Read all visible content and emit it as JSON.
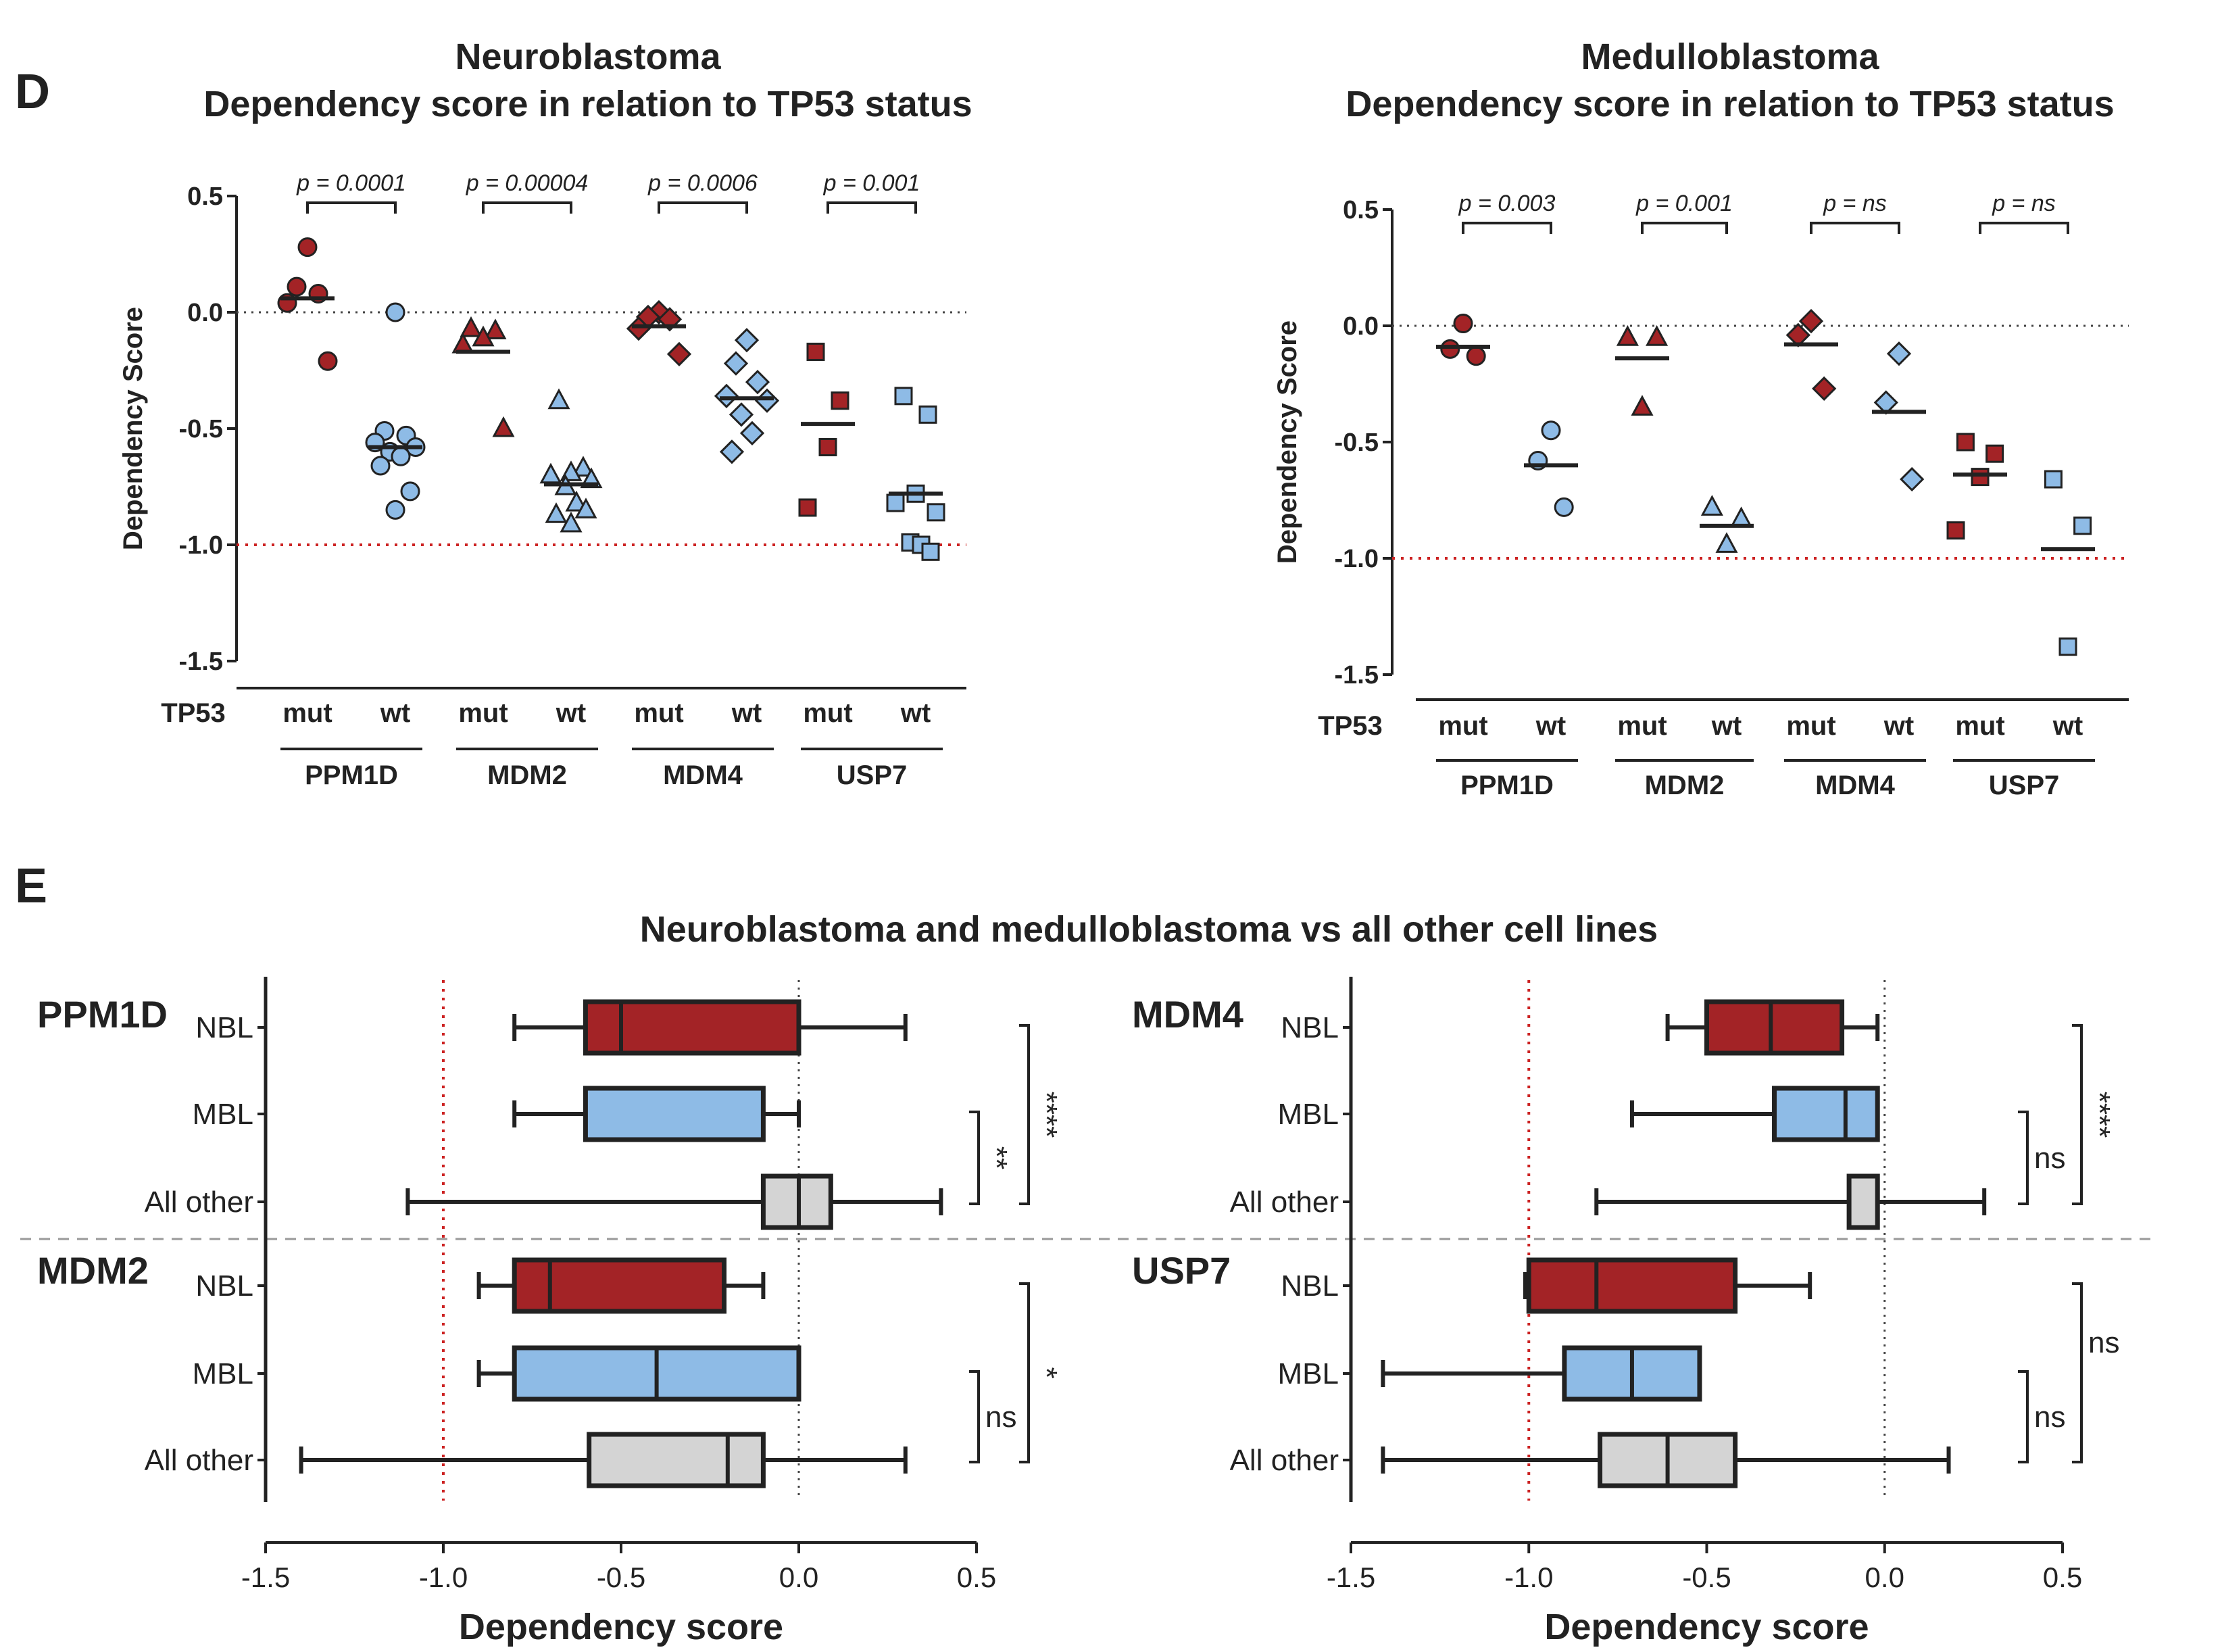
{
  "panels": {
    "D": "D",
    "E": "E"
  },
  "colors": {
    "mut": "#a32326",
    "wt": "#8ebbe6",
    "other": "#d4d4d4",
    "outline": "#222222",
    "red_line": "#cc2222",
    "grey_line": "#999999"
  },
  "chart_data": [
    {
      "type": "scatter",
      "id": "nbl",
      "title": [
        "Neuroblastoma",
        "Dependency score in relation to TP53 status"
      ],
      "ylabel": "Dependency Score",
      "ylim": [
        -1.5,
        0.5
      ],
      "yticks": [
        "0.5",
        "0.0",
        "-0.5",
        "-1.0",
        "-1.5"
      ],
      "reference_lines": [
        0.0,
        -1.0
      ],
      "row_label": "TP53",
      "groups": [
        {
          "gene": "PPM1D",
          "marker": "circle",
          "p": "p = 0.0001",
          "mut": {
            "label": "mut",
            "median": 0.06,
            "values": [
              0.28,
              0.11,
              0.08,
              0.04,
              -0.21
            ]
          },
          "wt": {
            "label": "wt",
            "median": -0.58,
            "values": [
              0.0,
              -0.51,
              -0.53,
              -0.56,
              -0.58,
              -0.6,
              -0.62,
              -0.66,
              -0.77,
              -0.85
            ]
          }
        },
        {
          "gene": "MDM2",
          "marker": "triangle",
          "p": "p = 0.00004",
          "mut": {
            "label": "mut",
            "median": -0.17,
            "values": [
              -0.07,
              -0.08,
              -0.11,
              -0.14,
              -0.5
            ]
          },
          "wt": {
            "label": "wt",
            "median": -0.74,
            "values": [
              -0.38,
              -0.67,
              -0.69,
              -0.7,
              -0.72,
              -0.75,
              -0.82,
              -0.85,
              -0.87,
              -0.91
            ]
          }
        },
        {
          "gene": "MDM4",
          "marker": "diamond",
          "p": "p = 0.0006",
          "mut": {
            "label": "mut",
            "median": -0.06,
            "values": [
              -0.0,
              -0.02,
              -0.03,
              -0.07,
              -0.18
            ]
          },
          "wt": {
            "label": "wt",
            "median": -0.37,
            "values": [
              -0.12,
              -0.22,
              -0.3,
              -0.36,
              -0.38,
              -0.44,
              -0.52,
              -0.6
            ]
          }
        },
        {
          "gene": "USP7",
          "marker": "square",
          "p": "p = 0.001",
          "mut": {
            "label": "mut",
            "median": -0.48,
            "values": [
              -0.17,
              -0.38,
              -0.58,
              -0.84
            ]
          },
          "wt": {
            "label": "wt",
            "median": -0.78,
            "values": [
              -0.36,
              -0.44,
              -0.78,
              -0.82,
              -0.86,
              -0.99,
              -1.0,
              -1.03
            ]
          }
        }
      ]
    },
    {
      "type": "scatter",
      "id": "mbl",
      "title": [
        "Medulloblastoma",
        "Dependency score in relation to TP53 status"
      ],
      "ylabel": "Dependency Score",
      "ylim": [
        -1.5,
        0.5
      ],
      "yticks": [
        "0.5",
        "0.0",
        "-0.5",
        "-1.0",
        "-1.5"
      ],
      "reference_lines": [
        0.0,
        -1.0
      ],
      "row_label": "TP53",
      "groups": [
        {
          "gene": "PPM1D",
          "marker": "circle",
          "p": "p = 0.003",
          "mut": {
            "label": "mut",
            "median": -0.09,
            "values": [
              0.01,
              -0.1,
              -0.13
            ]
          },
          "wt": {
            "label": "wt",
            "median": -0.6,
            "values": [
              -0.45,
              -0.58,
              -0.78
            ]
          }
        },
        {
          "gene": "MDM2",
          "marker": "triangle",
          "p": "p = 0.001",
          "mut": {
            "label": "mut",
            "median": -0.14,
            "values": [
              -0.05,
              -0.05,
              -0.35
            ]
          },
          "wt": {
            "label": "wt",
            "median": -0.86,
            "values": [
              -0.78,
              -0.83,
              -0.94
            ]
          }
        },
        {
          "gene": "MDM4",
          "marker": "diamond",
          "p": "p = ns",
          "mut": {
            "label": "mut",
            "median": -0.08,
            "values": [
              0.02,
              -0.04,
              -0.27
            ]
          },
          "wt": {
            "label": "wt",
            "median": -0.37,
            "values": [
              -0.12,
              -0.33,
              -0.66
            ]
          }
        },
        {
          "gene": "USP7",
          "marker": "square",
          "p": "p = ns",
          "mut": {
            "label": "mut",
            "median": -0.64,
            "values": [
              -0.5,
              -0.55,
              -0.65,
              -0.88
            ]
          },
          "wt": {
            "label": "wt",
            "median": -0.96,
            "values": [
              -0.66,
              -0.86,
              -1.38
            ]
          }
        }
      ]
    },
    {
      "type": "boxplot",
      "id": "box",
      "title": "Neuroblastoma and medulloblastoma vs all other cell lines",
      "xlabel": "Dependency score",
      "xlim": [
        -1.5,
        0.5
      ],
      "xticks": [
        "-1.5",
        "-1.0",
        "-0.5",
        "0.0",
        "0.5"
      ],
      "reference_lines": [
        -1.0,
        0.0
      ],
      "categories": [
        "NBL",
        "MBL",
        "All other"
      ],
      "genes": [
        {
          "gene": "PPM1D",
          "sig_inner": "**",
          "sig_outer": "****",
          "boxes": [
            {
              "cat": "NBL",
              "min": -0.8,
              "q1": -0.6,
              "median": -0.5,
              "q3": 0.0,
              "max": 0.3
            },
            {
              "cat": "MBL",
              "min": -0.8,
              "q1": -0.6,
              "median": -0.1,
              "q3": -0.1,
              "max": 0.0
            },
            {
              "cat": "All other",
              "min": -1.1,
              "q1": -0.1,
              "median": 0.0,
              "q3": 0.09,
              "max": 0.4
            }
          ]
        },
        {
          "gene": "MDM2",
          "sig_inner": "ns",
          "sig_outer": "*",
          "boxes": [
            {
              "cat": "NBL",
              "min": -0.9,
              "q1": -0.8,
              "median": -0.7,
              "q3": -0.21,
              "max": -0.1
            },
            {
              "cat": "MBL",
              "min": -0.9,
              "q1": -0.8,
              "median": -0.4,
              "q3": 0.0,
              "max": 0.0
            },
            {
              "cat": "All other",
              "min": -1.4,
              "q1": -0.59,
              "median": -0.2,
              "q3": -0.1,
              "max": 0.3
            }
          ]
        },
        {
          "gene": "MDM4",
          "sig_inner": "ns",
          "sig_outer": "****",
          "boxes": [
            {
              "cat": "NBL",
              "min": -0.61,
              "q1": -0.5,
              "median": -0.32,
              "q3": -0.12,
              "max": -0.02
            },
            {
              "cat": "MBL",
              "min": -0.71,
              "q1": -0.31,
              "median": -0.11,
              "q3": -0.02,
              "max": -0.02
            },
            {
              "cat": "All other",
              "min": -0.81,
              "q1": -0.1,
              "median": -0.02,
              "q3": -0.02,
              "max": 0.28
            }
          ]
        },
        {
          "gene": "USP7",
          "sig_inner": "ns",
          "sig_outer": "ns",
          "boxes": [
            {
              "cat": "NBL",
              "min": -1.01,
              "q1": -1.0,
              "median": -0.81,
              "q3": -0.42,
              "max": -0.21
            },
            {
              "cat": "MBL",
              "min": -1.41,
              "q1": -0.9,
              "median": -0.71,
              "q3": -0.52,
              "max": -0.52
            },
            {
              "cat": "All other",
              "min": -1.41,
              "q1": -0.8,
              "median": -0.61,
              "q3": -0.42,
              "max": 0.18
            }
          ]
        }
      ]
    }
  ]
}
